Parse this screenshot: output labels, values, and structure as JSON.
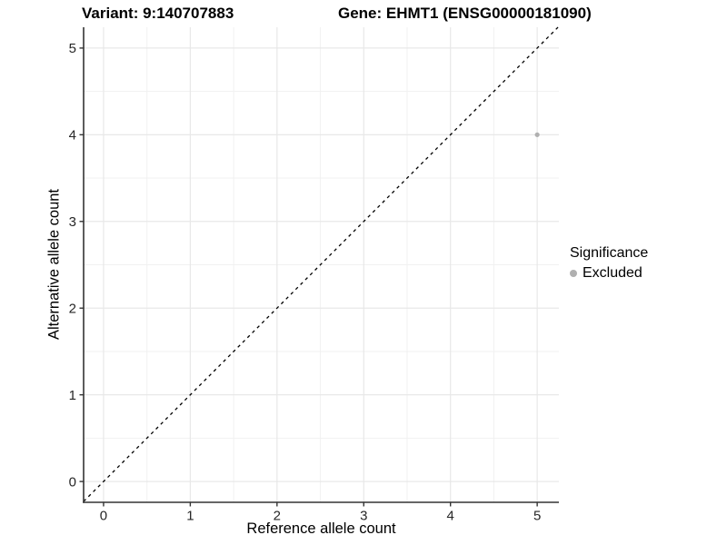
{
  "titles": {
    "left": "Variant: 9:140707883",
    "right": "Gene: EHMT1 (ENSG00000181090)"
  },
  "chart_data": {
    "type": "scatter",
    "title_left": "Variant: 9:140707883",
    "title_right": "Gene: EHMT1 (ENSG00000181090)",
    "xlabel": "Reference allele count",
    "ylabel": "Alternative allele count",
    "x_ticks": [
      0,
      1,
      2,
      3,
      4,
      5
    ],
    "y_ticks": [
      0,
      1,
      2,
      3,
      4,
      5
    ],
    "xlim": [
      -0.23,
      5.25
    ],
    "ylim": [
      -0.24,
      5.24
    ],
    "grid": {
      "major": true,
      "minor": true,
      "minor_step": 0.5
    },
    "identity_line": {
      "slope": 1,
      "intercept": 0,
      "style": "dashed",
      "color": "#000000"
    },
    "points": [
      {
        "x": 5,
        "y": 4,
        "series": "Excluded"
      }
    ],
    "legend": {
      "title": "Significance",
      "position": "right",
      "entries": [
        {
          "label": "Excluded",
          "color": "#b0b0b0"
        }
      ]
    }
  },
  "colors": {
    "point": "#b0b0b0",
    "grid_major": "#e8e8e8",
    "grid_minor": "#f1f1f1",
    "axis_line": "#333333",
    "tick_text": "#262626"
  }
}
